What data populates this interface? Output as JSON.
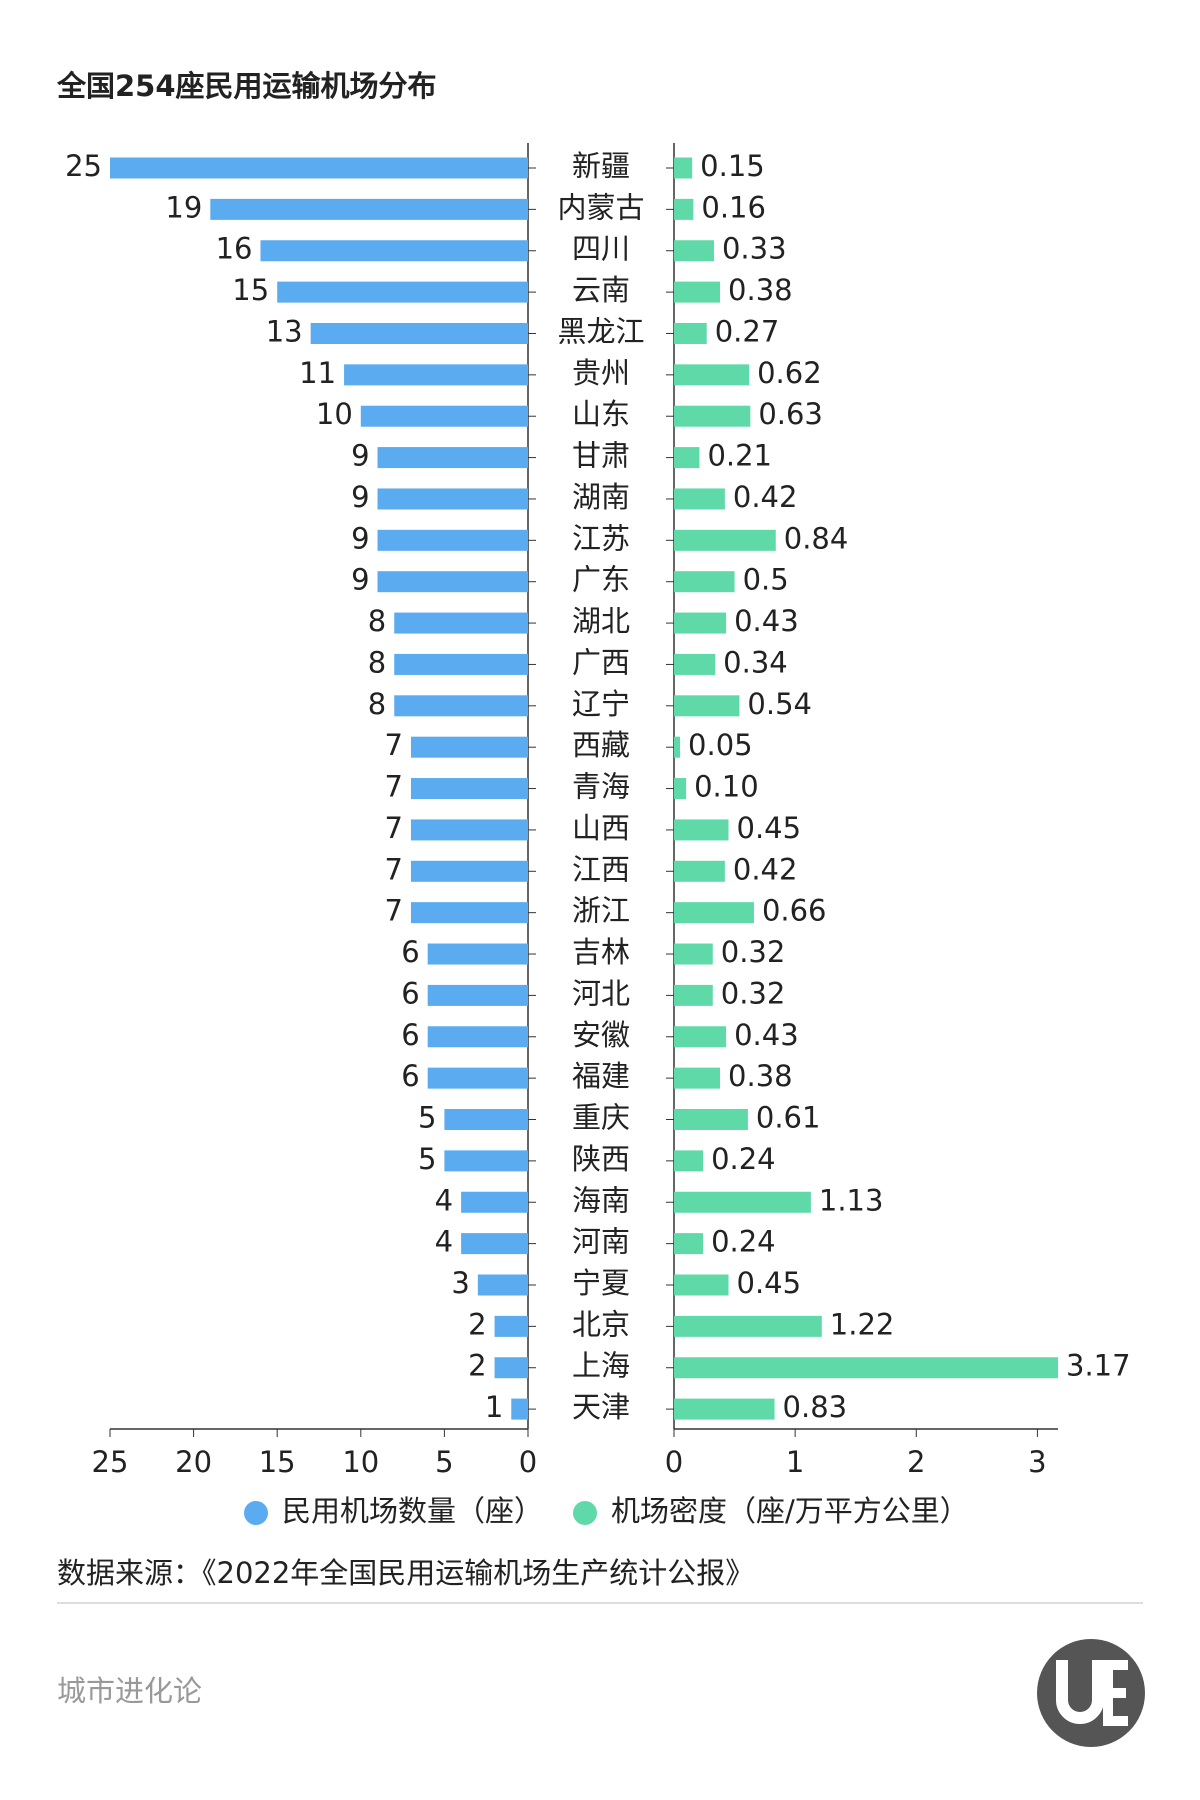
{
  "title": "全国254座民用运输机场分布",
  "source": "数据来源：《2022年全国民用运输机场生产统计公报》",
  "brand": "城市进化论",
  "chart_data": {
    "type": "butterfly",
    "categories": [
      "新疆",
      "内蒙古",
      "四川",
      "云南",
      "黑龙江",
      "贵州",
      "山东",
      "甘肃",
      "湖南",
      "江苏",
      "广东",
      "湖北",
      "广西",
      "辽宁",
      "西藏",
      "青海",
      "山西",
      "江西",
      "浙江",
      "吉林",
      "河北",
      "安徽",
      "福建",
      "重庆",
      "陕西",
      "海南",
      "河南",
      "宁夏",
      "北京",
      "上海",
      "天津"
    ],
    "series": [
      {
        "name": "民用机场数量（座）",
        "color": "#5aabf0",
        "values": [
          25,
          19,
          16,
          15,
          13,
          11,
          10,
          9,
          9,
          9,
          9,
          8,
          8,
          8,
          7,
          7,
          7,
          7,
          7,
          6,
          6,
          6,
          6,
          5,
          5,
          4,
          4,
          3,
          2,
          2,
          1
        ],
        "xlim": [
          0,
          25
        ],
        "xticks": [
          0,
          5,
          10,
          15,
          20,
          25
        ]
      },
      {
        "name": "机场密度（座/万平方公里）",
        "color": "#5fd9a8",
        "values": [
          0.15,
          0.16,
          0.33,
          0.38,
          0.27,
          0.62,
          0.63,
          0.21,
          0.42,
          0.84,
          0.5,
          0.43,
          0.34,
          0.54,
          0.05,
          0.1,
          0.45,
          0.42,
          0.66,
          0.32,
          0.32,
          0.43,
          0.38,
          0.61,
          0.24,
          1.13,
          0.24,
          0.45,
          1.22,
          3.17,
          0.83
        ],
        "value_labels": [
          "0.15",
          "0.16",
          "0.33",
          "0.38",
          "0.27",
          "0.62",
          "0.63",
          "0.21",
          "0.42",
          "0.84",
          "0.5",
          "0.43",
          "0.34",
          "0.54",
          "0.05",
          "0.10",
          "0.45",
          "0.42",
          "0.66",
          "0.32",
          "0.32",
          "0.43",
          "0.38",
          "0.61",
          "0.24",
          "1.13",
          "0.24",
          "0.45",
          "1.22",
          "3.17",
          "0.83"
        ],
        "xlim": [
          0,
          3.17
        ],
        "xticks": [
          0,
          1,
          2,
          3
        ]
      }
    ]
  }
}
